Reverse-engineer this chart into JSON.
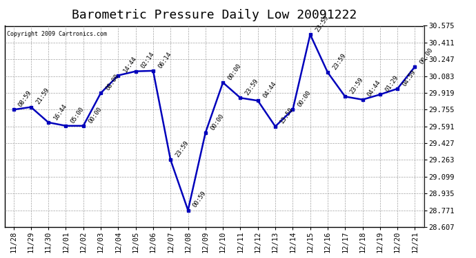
{
  "title": "Barometric Pressure Daily Low 20091222",
  "copyright": "Copyright 2009 Cartronics.com",
  "x_labels": [
    "11/28",
    "11/29",
    "11/30",
    "12/01",
    "12/02",
    "12/03",
    "12/04",
    "12/05",
    "12/06",
    "12/07",
    "12/08",
    "12/09",
    "12/10",
    "12/11",
    "12/12",
    "12/13",
    "12/14",
    "12/15",
    "12/16",
    "12/17",
    "12/18",
    "12/19",
    "12/20",
    "12/21"
  ],
  "y_values": [
    29.755,
    29.78,
    29.63,
    29.597,
    29.597,
    29.917,
    30.09,
    30.13,
    30.135,
    29.263,
    28.771,
    29.53,
    30.02,
    29.87,
    29.843,
    29.591,
    29.755,
    30.49,
    30.12,
    29.883,
    29.853,
    29.903,
    29.96,
    30.175
  ],
  "point_labels": [
    "08:59",
    "21:59",
    "16:44",
    "05:00",
    "00:00",
    "08:00",
    "14:44",
    "02:14",
    "06:14",
    "23:59",
    "00:59",
    "00:00",
    "00:00",
    "23:59",
    "04:44",
    "13:59",
    "00:00",
    "23:59",
    "23:59",
    "23:59",
    "04:44",
    "01:29",
    "04:59",
    "00:00"
  ],
  "ylim_min": 28.607,
  "ylim_max": 30.575,
  "yticks": [
    28.607,
    28.771,
    28.935,
    29.099,
    29.263,
    29.427,
    29.591,
    29.755,
    29.919,
    30.083,
    30.247,
    30.411,
    30.575
  ],
  "line_color": "#0000bb",
  "marker_color": "#0000bb",
  "bg_color": "#ffffff",
  "grid_color": "#999999",
  "title_fontsize": 13,
  "label_fontsize": 7.5,
  "point_label_fontsize": 6.5
}
